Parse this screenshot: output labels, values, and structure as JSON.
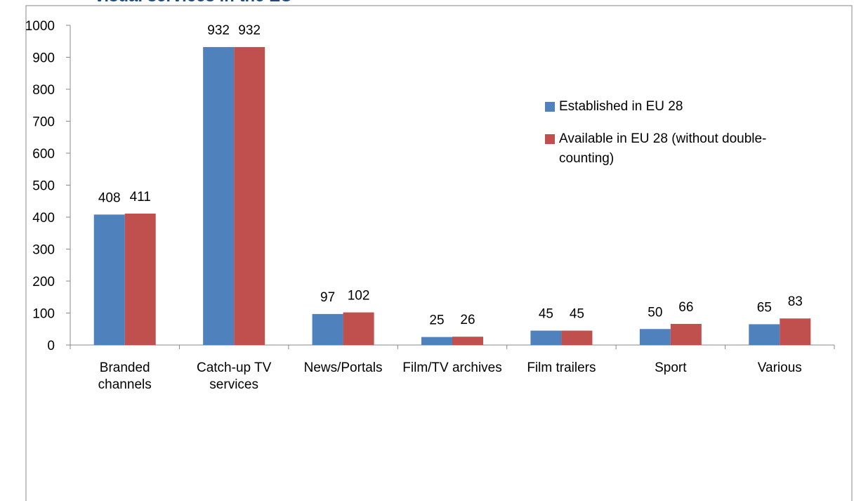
{
  "chart_data": {
    "type": "bar",
    "title": "visual services in the EU",
    "categories": [
      "Branded channels",
      "Catch-up TV services",
      "News/Portals",
      "Film/TV archives",
      "Film trailers",
      "Sport",
      "Various"
    ],
    "series": [
      {
        "name": "Established in EU 28",
        "color": "#4f81bd",
        "values": [
          408,
          932,
          97,
          25,
          45,
          50,
          65
        ]
      },
      {
        "name": "Available in EU 28 (without double-counting)",
        "color": "#c0504d",
        "values": [
          411,
          932,
          102,
          26,
          45,
          66,
          83
        ]
      }
    ],
    "ylim": [
      0,
      1000
    ],
    "yticks": [
      0,
      100,
      200,
      300,
      400,
      500,
      600,
      700,
      800,
      900,
      1000
    ],
    "grid": false,
    "legend": "right"
  }
}
